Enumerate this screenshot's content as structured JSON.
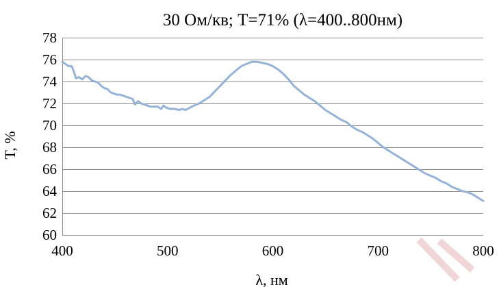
{
  "chart_data": {
    "type": "line",
    "title": "30 Ом/кв; T=71%  (λ=400..800нм)",
    "xlabel": "λ, нм",
    "ylabel": "T, %",
    "xlim": [
      400,
      800
    ],
    "ylim": [
      60,
      78
    ],
    "x_ticks": [
      400,
      500,
      600,
      700,
      800
    ],
    "y_ticks": [
      60,
      62,
      64,
      66,
      68,
      70,
      72,
      74,
      76,
      78
    ],
    "grid": "horizontal",
    "legend": "none",
    "series": [
      {
        "color": "#95b3d7",
        "points": [
          [
            400,
            75.8
          ],
          [
            403,
            75.6
          ],
          [
            406,
            75.4
          ],
          [
            409,
            75.4
          ],
          [
            411,
            74.9
          ],
          [
            413,
            74.3
          ],
          [
            416,
            74.4
          ],
          [
            419,
            74.2
          ],
          [
            422,
            74.5
          ],
          [
            425,
            74.4
          ],
          [
            428,
            74.1
          ],
          [
            431,
            74.0
          ],
          [
            434,
            73.9
          ],
          [
            437,
            73.6
          ],
          [
            440,
            73.4
          ],
          [
            443,
            73.3
          ],
          [
            446,
            73.0
          ],
          [
            449,
            72.9
          ],
          [
            452,
            72.8
          ],
          [
            455,
            72.8
          ],
          [
            458,
            72.7
          ],
          [
            461,
            72.6
          ],
          [
            464,
            72.5
          ],
          [
            467,
            72.4
          ],
          [
            469,
            71.9
          ],
          [
            472,
            72.2
          ],
          [
            475,
            72.0
          ],
          [
            478,
            71.9
          ],
          [
            481,
            71.8
          ],
          [
            484,
            71.7
          ],
          [
            488,
            71.7
          ],
          [
            491,
            71.7
          ],
          [
            494,
            71.5
          ],
          [
            496,
            71.8
          ],
          [
            499,
            71.6
          ],
          [
            503,
            71.5
          ],
          [
            507,
            71.5
          ],
          [
            511,
            71.4
          ],
          [
            514,
            71.5
          ],
          [
            517,
            71.4
          ],
          [
            521,
            71.6
          ],
          [
            525,
            71.8
          ],
          [
            530,
            72.0
          ],
          [
            535,
            72.3
          ],
          [
            540,
            72.6
          ],
          [
            545,
            73.1
          ],
          [
            550,
            73.6
          ],
          [
            555,
            74.1
          ],
          [
            560,
            74.6
          ],
          [
            565,
            75.0
          ],
          [
            570,
            75.4
          ],
          [
            575,
            75.6
          ],
          [
            580,
            75.8
          ],
          [
            585,
            75.8
          ],
          [
            590,
            75.7
          ],
          [
            595,
            75.6
          ],
          [
            600,
            75.4
          ],
          [
            605,
            75.1
          ],
          [
            610,
            74.7
          ],
          [
            615,
            74.2
          ],
          [
            620,
            73.6
          ],
          [
            625,
            73.2
          ],
          [
            630,
            72.8
          ],
          [
            635,
            72.5
          ],
          [
            640,
            72.2
          ],
          [
            645,
            71.8
          ],
          [
            650,
            71.4
          ],
          [
            655,
            71.1
          ],
          [
            660,
            70.8
          ],
          [
            665,
            70.5
          ],
          [
            670,
            70.3
          ],
          [
            675,
            69.9
          ],
          [
            680,
            69.6
          ],
          [
            685,
            69.4
          ],
          [
            690,
            69.1
          ],
          [
            695,
            68.8
          ],
          [
            700,
            68.4
          ],
          [
            705,
            68.0
          ],
          [
            710,
            67.7
          ],
          [
            715,
            67.4
          ],
          [
            720,
            67.1
          ],
          [
            725,
            66.8
          ],
          [
            730,
            66.5
          ],
          [
            735,
            66.2
          ],
          [
            740,
            65.9
          ],
          [
            745,
            65.6
          ],
          [
            750,
            65.4
          ],
          [
            755,
            65.2
          ],
          [
            760,
            64.9
          ],
          [
            765,
            64.7
          ],
          [
            770,
            64.4
          ],
          [
            775,
            64.2
          ],
          [
            780,
            64.0
          ],
          [
            785,
            63.9
          ],
          [
            790,
            63.7
          ],
          [
            795,
            63.4
          ],
          [
            800,
            63.1
          ]
        ]
      }
    ]
  },
  "colors": {
    "grid": "#8c8c8c",
    "axis": "#8c8c8c",
    "series": "#95b3d7",
    "watermark": "#f0d6d6"
  }
}
